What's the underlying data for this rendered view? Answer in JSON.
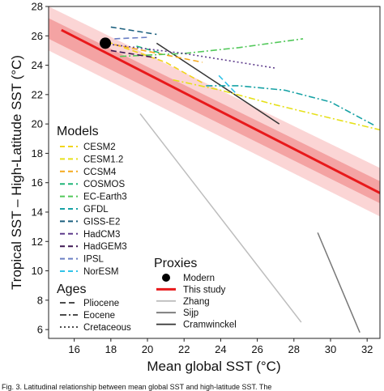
{
  "chart_data": {
    "type": "line",
    "xlabel": "Mean global SST (°C)",
    "ylabel": "Tropical SST – High-Latitude SST (°C)",
    "xlim": [
      14.6,
      32.7
    ],
    "ylim": [
      5.4,
      28
    ],
    "xticks": [
      16,
      18,
      20,
      22,
      24,
      26,
      28,
      30,
      32
    ],
    "yticks": [
      6,
      8,
      10,
      12,
      14,
      16,
      18,
      20,
      22,
      24,
      26,
      28
    ],
    "grid": false,
    "uncertainty_bands": [
      {
        "outer": true,
        "x": [
          14.6,
          32.7
        ],
        "lower": [
          25.0,
          13.7
        ],
        "upper": [
          28.0,
          17.0
        ],
        "color": "#fbd5d5"
      },
      {
        "outer": false,
        "x": [
          14.6,
          32.7
        ],
        "lower": [
          25.8,
          14.6
        ],
        "upper": [
          27.2,
          16.1
        ],
        "color": "#f4a3a3"
      }
    ],
    "modern_point": {
      "label": "Modern",
      "x": 17.7,
      "y": 25.5,
      "color": "#000000"
    },
    "series": [
      {
        "name": "This study",
        "group": "proxies",
        "color": "#e8191b",
        "style": "solid",
        "width": 3,
        "x": [
          15.3,
          32.7
        ],
        "y": [
          26.4,
          15.3
        ]
      },
      {
        "name": "Zhang",
        "group": "proxies",
        "color": "#bdbdbd",
        "style": "solid",
        "width": 1.5,
        "x": [
          19.6,
          28.4
        ],
        "y": [
          20.7,
          6.5
        ]
      },
      {
        "name": "Sijp",
        "group": "proxies",
        "color": "#777777",
        "style": "solid",
        "width": 1.5,
        "x": [
          29.3,
          31.6
        ],
        "y": [
          12.6,
          5.8
        ]
      },
      {
        "name": "Cramwinckel",
        "group": "proxies",
        "color": "#333333",
        "style": "solid",
        "width": 1.5,
        "x": [
          20.5,
          27.2
        ],
        "y": [
          25.5,
          20.0
        ]
      },
      {
        "name": "CESM2",
        "group": "models",
        "color": "#f1d51c",
        "style": "dashed",
        "x": [
          17.8,
          21.0,
          23.0
        ],
        "y": [
          25.6,
          24.2,
          22.8
        ]
      },
      {
        "name": "CESM1.2",
        "group": "models",
        "color": "#e6e01a",
        "style": "dashdot",
        "x": [
          21.4,
          24.0,
          27.0,
          30.0,
          32.7
        ],
        "y": [
          23.0,
          22.3,
          21.3,
          20.4,
          19.6
        ]
      },
      {
        "name": "CCSM4",
        "group": "models",
        "color": "#f5a91d",
        "style": "dashed",
        "x": [
          18.2,
          21.0,
          23.0
        ],
        "y": [
          25.4,
          24.7,
          24.2
        ]
      },
      {
        "name": "COSMOS",
        "group": "models",
        "color": "#20b678",
        "style": "dashed",
        "x": [
          19.4,
          20.8
        ],
        "y": [
          25.3,
          24.8
        ]
      },
      {
        "name": "EC-Earth3",
        "group": "models",
        "color": "#52c85a",
        "style": "dashdot",
        "x": [
          18.5,
          22.0,
          25.0,
          28.5
        ],
        "y": [
          24.6,
          24.8,
          25.2,
          25.8
        ]
      },
      {
        "name": "GFDL",
        "group": "models",
        "color": "#17a2a5",
        "style": "dashdot",
        "x": [
          23.2,
          25.0,
          27.5,
          30.0,
          32.4
        ],
        "y": [
          22.6,
          22.6,
          22.3,
          21.5,
          19.9
        ]
      },
      {
        "name": "GISS-E2",
        "group": "models",
        "color": "#1b5f7e",
        "style": "dashed",
        "x": [
          18.0,
          20.5
        ],
        "y": [
          26.6,
          26.1
        ]
      },
      {
        "name": "HadCM3",
        "group": "models",
        "color": "#5e3c8c",
        "style": "dotted",
        "x": [
          18.1,
          22.0,
          25.5,
          27.0
        ],
        "y": [
          25.4,
          24.8,
          24.1,
          23.8
        ]
      },
      {
        "name": "HadGEM3",
        "group": "models",
        "color": "#3e1752",
        "style": "dashed",
        "x": [
          18.0,
          20.5
        ],
        "y": [
          25.0,
          24.5
        ]
      },
      {
        "name": "IPSL",
        "group": "models",
        "color": "#6a7fc4",
        "style": "dashed",
        "x": [
          18.2,
          20.0
        ],
        "y": [
          25.8,
          25.9
        ]
      },
      {
        "name": "NorESM",
        "group": "models",
        "color": "#31c3e8",
        "style": "dashed",
        "x": [
          23.9,
          24.9
        ],
        "y": [
          23.3,
          22.0
        ]
      }
    ],
    "legend_placement": "left-center"
  },
  "legend": {
    "models_title": "Models",
    "models": [
      {
        "name": "CESM2",
        "color": "#f1d51c"
      },
      {
        "name": "CESM1.2",
        "color": "#e6e01a"
      },
      {
        "name": "CCSM4",
        "color": "#f5a91d"
      },
      {
        "name": "COSMOS",
        "color": "#20b678"
      },
      {
        "name": "EC-Earth3",
        "color": "#52c85a"
      },
      {
        "name": "GFDL",
        "color": "#17a2a5"
      },
      {
        "name": "GISS-E2",
        "color": "#1b5f7e"
      },
      {
        "name": "HadCM3",
        "color": "#5e3c8c"
      },
      {
        "name": "HadGEM3",
        "color": "#3e1752"
      },
      {
        "name": "IPSL",
        "color": "#6a7fc4"
      },
      {
        "name": "NorESM",
        "color": "#31c3e8"
      }
    ],
    "ages_title": "Ages",
    "ages": [
      {
        "name": "Pliocene",
        "style": "dashed"
      },
      {
        "name": "Eocene",
        "style": "dashdot"
      },
      {
        "name": "Cretaceous",
        "style": "dotted"
      }
    ],
    "proxies_title": "Proxies",
    "proxies": [
      {
        "name": "Modern",
        "kind": "point",
        "color": "#000000"
      },
      {
        "name": "This study",
        "kind": "line",
        "color": "#e8191b"
      },
      {
        "name": "Zhang",
        "kind": "line",
        "color": "#bdbdbd"
      },
      {
        "name": "Sijp",
        "kind": "line",
        "color": "#777777"
      },
      {
        "name": "Cramwinckel",
        "kind": "line",
        "color": "#333333"
      }
    ]
  },
  "caption_fragment": "Fig. 3. Latitudinal relationship between mean global SST and high-latitude SST. The"
}
